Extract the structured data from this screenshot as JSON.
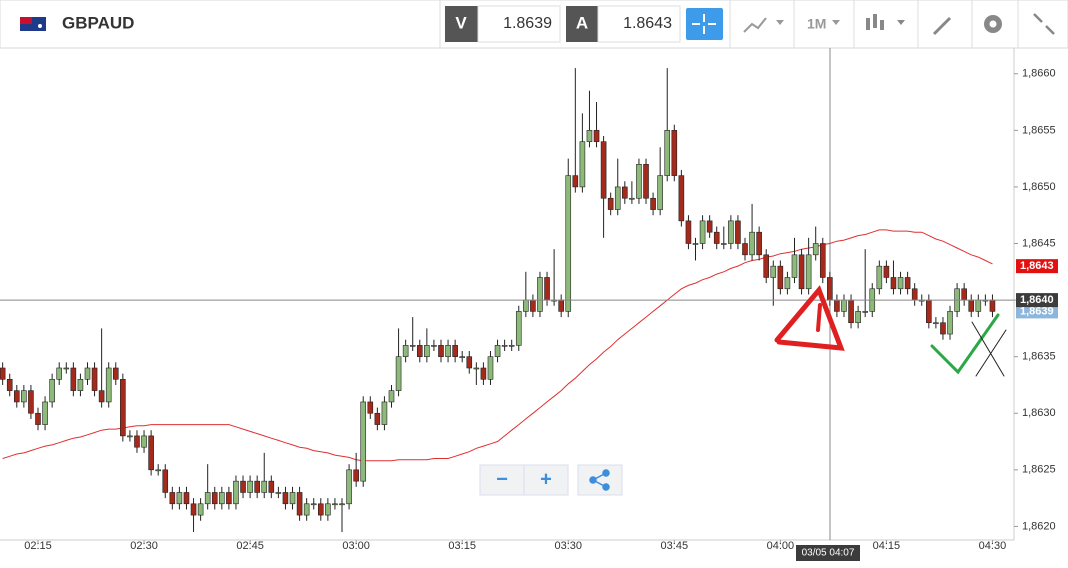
{
  "header": {
    "symbol": "GBPAUD",
    "bid_label": "V",
    "bid": "1.8639",
    "ask_label": "A",
    "ask": "1.8643",
    "timeframe": "1M"
  },
  "controls": {
    "zoom_out": "−",
    "zoom_in": "+"
  },
  "chart_data": {
    "type": "candlestick",
    "categories": [
      null,
      null,
      null,
      null,
      null,
      "02:15",
      null,
      null,
      null,
      null,
      null,
      null,
      null,
      null,
      null,
      null,
      null,
      null,
      null,
      null,
      "02:30",
      null,
      null,
      null,
      null,
      null,
      null,
      null,
      null,
      null,
      null,
      null,
      null,
      null,
      null,
      "02:45",
      null,
      null,
      null,
      null,
      null,
      null,
      null,
      null,
      null,
      null,
      null,
      null,
      null,
      null,
      "03:00",
      null,
      null,
      null,
      null,
      null,
      null,
      null,
      null,
      null,
      null,
      null,
      null,
      null,
      null,
      "03:15",
      null,
      null,
      null,
      null,
      null,
      null,
      null,
      null,
      null,
      null,
      null,
      null,
      null,
      null,
      "03:30",
      null,
      null,
      null,
      null,
      null,
      null,
      null,
      null,
      null,
      null,
      null,
      null,
      null,
      null,
      "03:45",
      null,
      null,
      null,
      null,
      null,
      null,
      null,
      null,
      null,
      null,
      null,
      null,
      null,
      null,
      "04:00",
      null,
      null,
      null,
      null,
      null,
      null,
      null,
      null,
      null,
      null,
      null,
      null,
      null,
      null,
      "04:15",
      null,
      null,
      null,
      null,
      null,
      null,
      null,
      null,
      null,
      null,
      null,
      null,
      null,
      null,
      "04:30"
    ],
    "open": [
      1.8634,
      1.8633,
      1.8632,
      1.8631,
      1.8632,
      1.863,
      1.8629,
      1.8631,
      1.8633,
      1.8634,
      1.8634,
      1.8632,
      1.8633,
      1.8634,
      1.8632,
      1.8631,
      1.8634,
      1.8633,
      1.8628,
      1.8628,
      1.8627,
      1.8628,
      1.8625,
      1.8625,
      1.8623,
      1.8622,
      1.8623,
      1.8622,
      1.8621,
      1.8622,
      1.8623,
      1.8622,
      1.8623,
      1.8622,
      1.8624,
      1.8623,
      1.8624,
      1.8623,
      1.8624,
      1.8623,
      1.8623,
      1.8622,
      1.8623,
      1.8621,
      1.8622,
      1.8622,
      1.8621,
      1.8622,
      1.8622,
      1.8622,
      1.8625,
      1.8624,
      1.8631,
      1.863,
      1.8629,
      1.8631,
      1.8632,
      1.8635,
      1.8636,
      1.8636,
      1.8635,
      1.8636,
      1.8636,
      1.8635,
      1.8636,
      1.8635,
      1.8635,
      1.8634,
      1.8634,
      1.8633,
      1.8635,
      1.8636,
      1.8636,
      1.8636,
      1.8639,
      1.864,
      1.8639,
      1.8642,
      1.864,
      1.864,
      1.8639,
      1.8651,
      1.865,
      1.8654,
      1.8655,
      1.8654,
      1.8649,
      1.8648,
      1.865,
      1.8649,
      1.8649,
      1.8652,
      1.8649,
      1.8648,
      1.8651,
      1.8655,
      1.8651,
      1.8647,
      1.8645,
      1.8645,
      1.8647,
      1.8646,
      1.8645,
      1.8645,
      1.8647,
      1.8645,
      1.8644,
      1.8646,
      1.8644,
      1.8642,
      1.8643,
      1.8641,
      1.8642,
      1.8644,
      1.8641,
      1.8644,
      1.8645,
      1.8642,
      1.864,
      1.8639,
      1.864,
      1.8638,
      1.8639,
      1.8639,
      1.8641,
      1.8643,
      1.8642,
      1.8641,
      1.8642,
      1.8641,
      1.864,
      1.864,
      1.8638,
      1.8638,
      1.8637,
      1.8639,
      1.8641,
      1.864,
      1.8639,
      1.864,
      1.864
    ],
    "high": [
      1.86345,
      1.86335,
      1.86325,
      1.86325,
      1.86325,
      1.86305,
      1.86315,
      1.86335,
      1.86345,
      1.86345,
      1.86345,
      1.86335,
      1.86345,
      1.86345,
      1.86375,
      1.86345,
      1.86345,
      1.86335,
      1.86285,
      1.86285,
      1.86285,
      1.86285,
      1.86255,
      1.86255,
      1.86235,
      1.86235,
      1.86235,
      1.86225,
      1.86225,
      1.86255,
      1.86235,
      1.86235,
      1.86235,
      1.86245,
      1.86245,
      1.86245,
      1.86245,
      1.86265,
      1.86245,
      1.86235,
      1.86235,
      1.86235,
      1.86235,
      1.86225,
      1.86225,
      1.86225,
      1.86225,
      1.86225,
      1.86225,
      1.86255,
      1.86265,
      1.86315,
      1.86315,
      1.86305,
      1.86315,
      1.86325,
      1.86375,
      1.86365,
      1.86385,
      1.86365,
      1.86375,
      1.86365,
      1.86365,
      1.86365,
      1.86365,
      1.86355,
      1.86355,
      1.86345,
      1.86345,
      1.86355,
      1.86365,
      1.86365,
      1.86365,
      1.86395,
      1.86425,
      1.86405,
      1.86425,
      1.86425,
      1.86445,
      1.86405,
      1.86525,
      1.86605,
      1.86565,
      1.86585,
      1.86575,
      1.86545,
      1.86495,
      1.86525,
      1.86505,
      1.86505,
      1.86525,
      1.86525,
      1.86495,
      1.86535,
      1.86605,
      1.86555,
      1.86515,
      1.86475,
      1.86455,
      1.86475,
      1.86475,
      1.86465,
      1.86465,
      1.86475,
      1.86475,
      1.86455,
      1.86485,
      1.86465,
      1.86445,
      1.86435,
      1.86435,
      1.86425,
      1.86455,
      1.86445,
      1.86455,
      1.86465,
      1.86455,
      1.86425,
      1.86405,
      1.86405,
      1.86405,
      1.86395,
      1.86445,
      1.86415,
      1.86435,
      1.86435,
      1.86435,
      1.86425,
      1.86425,
      1.86415,
      1.86405,
      1.86405,
      1.86385,
      1.86385,
      1.86395,
      1.86415,
      1.86415,
      1.86405,
      1.86405,
      1.86405,
      1.86405
    ],
    "low": [
      1.86325,
      1.86315,
      1.86305,
      1.86305,
      1.86295,
      1.86285,
      1.86285,
      1.86305,
      1.86325,
      1.86335,
      1.86315,
      1.86315,
      1.86325,
      1.86315,
      1.86305,
      1.86305,
      1.86325,
      1.86275,
      1.86275,
      1.86265,
      1.86265,
      1.86245,
      1.86245,
      1.86225,
      1.86215,
      1.86215,
      1.86215,
      1.86195,
      1.86205,
      1.86215,
      1.86215,
      1.86215,
      1.86215,
      1.86215,
      1.86225,
      1.86225,
      1.86225,
      1.86225,
      1.86225,
      1.86225,
      1.86215,
      1.86215,
      1.86205,
      1.86205,
      1.86215,
      1.86205,
      1.86205,
      1.86215,
      1.86195,
      1.86215,
      1.86235,
      1.86235,
      1.86295,
      1.86285,
      1.86285,
      1.86305,
      1.86315,
      1.86345,
      1.86355,
      1.86345,
      1.86345,
      1.86355,
      1.86345,
      1.86345,
      1.86345,
      1.86345,
      1.86335,
      1.86325,
      1.86325,
      1.86325,
      1.86345,
      1.86355,
      1.86355,
      1.86355,
      1.86385,
      1.86385,
      1.86385,
      1.86395,
      1.86395,
      1.86385,
      1.86385,
      1.86495,
      1.86495,
      1.86535,
      1.86535,
      1.86455,
      1.86475,
      1.86475,
      1.86485,
      1.86485,
      1.86485,
      1.86485,
      1.86475,
      1.86475,
      1.86505,
      1.86505,
      1.86465,
      1.86445,
      1.86435,
      1.86445,
      1.86455,
      1.86445,
      1.86445,
      1.86445,
      1.86445,
      1.86435,
      1.86435,
      1.86435,
      1.86415,
      1.86395,
      1.86405,
      1.86405,
      1.86415,
      1.86405,
      1.86405,
      1.86435,
      1.86415,
      1.86395,
      1.86385,
      1.86385,
      1.86375,
      1.86375,
      1.86385,
      1.86385,
      1.86405,
      1.86415,
      1.86405,
      1.86405,
      1.86405,
      1.86395,
      1.86395,
      1.86375,
      1.86375,
      1.86365,
      1.86365,
      1.86385,
      1.86395,
      1.86385,
      1.86385,
      1.86395,
      1.86385
    ],
    "close": [
      1.8633,
      1.8632,
      1.8631,
      1.8632,
      1.863,
      1.8629,
      1.8631,
      1.8633,
      1.8634,
      1.8634,
      1.8632,
      1.8633,
      1.8634,
      1.8632,
      1.8631,
      1.8634,
      1.8633,
      1.8628,
      1.8628,
      1.8627,
      1.8628,
      1.8625,
      1.8625,
      1.8623,
      1.8622,
      1.8623,
      1.8622,
      1.8621,
      1.8622,
      1.8623,
      1.8622,
      1.8623,
      1.8622,
      1.8624,
      1.8623,
      1.8624,
      1.8623,
      1.8624,
      1.8623,
      1.8623,
      1.8622,
      1.8623,
      1.8621,
      1.8622,
      1.8622,
      1.8621,
      1.8622,
      1.8622,
      1.8622,
      1.8625,
      1.8624,
      1.8631,
      1.863,
      1.8629,
      1.8631,
      1.8632,
      1.8635,
      1.8636,
      1.8636,
      1.8635,
      1.8636,
      1.8636,
      1.8635,
      1.8636,
      1.8635,
      1.8635,
      1.8634,
      1.8634,
      1.8633,
      1.8635,
      1.8636,
      1.8636,
      1.8636,
      1.8639,
      1.864,
      1.8639,
      1.8642,
      1.864,
      1.864,
      1.8639,
      1.8651,
      1.865,
      1.8654,
      1.8655,
      1.8654,
      1.8649,
      1.8648,
      1.865,
      1.8649,
      1.8649,
      1.8652,
      1.8649,
      1.8648,
      1.8651,
      1.8655,
      1.8651,
      1.8647,
      1.8645,
      1.8645,
      1.8647,
      1.8646,
      1.8645,
      1.8645,
      1.8647,
      1.8645,
      1.8644,
      1.8646,
      1.8644,
      1.8642,
      1.8643,
      1.8641,
      1.8642,
      1.8644,
      1.8641,
      1.8644,
      1.8645,
      1.8642,
      1.864,
      1.8639,
      1.864,
      1.8638,
      1.8639,
      1.8639,
      1.8641,
      1.8643,
      1.8642,
      1.8641,
      1.8642,
      1.8641,
      1.864,
      1.864,
      1.8638,
      1.8638,
      1.8637,
      1.8639,
      1.8641,
      1.864,
      1.8639,
      1.864,
      1.864,
      1.8639
    ],
    "up_color": "#8db97a",
    "down_color": "#a42a1c",
    "moving_average": {
      "color": "#e03030",
      "values": [
        1.8626,
        1.86262,
        1.86264,
        1.86265,
        1.86267,
        1.86269,
        1.86271,
        1.86272,
        1.86274,
        1.86276,
        1.86278,
        1.86279,
        1.86281,
        1.86283,
        1.86285,
        1.86286,
        1.86286,
        1.86287,
        1.86288,
        1.86289,
        1.86289,
        1.8629,
        1.8629,
        1.8629,
        1.8629,
        1.8629,
        1.8629,
        1.8629,
        1.8629,
        1.8629,
        1.8629,
        1.8629,
        1.8629,
        1.86288,
        1.86286,
        1.86284,
        1.86282,
        1.8628,
        1.86278,
        1.86276,
        1.86274,
        1.86272,
        1.8627,
        1.86269,
        1.86267,
        1.86266,
        1.86265,
        1.86263,
        1.86262,
        1.86261,
        1.86259,
        1.86258,
        1.86258,
        1.86258,
        1.86258,
        1.86258,
        1.86259,
        1.86259,
        1.86259,
        1.86259,
        1.86259,
        1.8626,
        1.8626,
        1.8626,
        1.86262,
        1.86264,
        1.86266,
        1.86269,
        1.86271,
        1.86273,
        1.86275,
        1.8628,
        1.86285,
        1.8629,
        1.86295,
        1.863,
        1.86305,
        1.8631,
        1.86315,
        1.8632,
        1.86326,
        1.86331,
        1.86337,
        1.86343,
        1.86348,
        1.86354,
        1.86359,
        1.86365,
        1.8637,
        1.86375,
        1.8638,
        1.86385,
        1.8639,
        1.86395,
        1.864,
        1.86405,
        1.8641,
        1.86413,
        1.86415,
        1.86418,
        1.8642,
        1.86423,
        1.86425,
        1.86428,
        1.8643,
        1.86433,
        1.86435,
        1.86436,
        1.86438,
        1.86439,
        1.86441,
        1.86442,
        1.86443,
        1.86445,
        1.86446,
        1.86447,
        1.86449,
        1.8645,
        1.86452,
        1.86453,
        1.86455,
        1.86457,
        1.86458,
        1.8646,
        1.86462,
        1.86462,
        1.86461,
        1.86461,
        1.86461,
        1.8646,
        1.8646,
        1.86457,
        1.86454,
        1.86452,
        1.86449,
        1.86446,
        1.86443,
        1.8644,
        1.86438,
        1.86435,
        1.86432
      ]
    },
    "ylim": [
      1.86188,
      1.86621
    ],
    "yticks": [
      {
        "value": 1.862,
        "label": "1,8620"
      },
      {
        "value": 1.8625,
        "label": "1,8625"
      },
      {
        "value": 1.863,
        "label": "1,8630"
      },
      {
        "value": 1.8635,
        "label": "1,8635"
      },
      {
        "value": 1.864,
        "label": "1,8640"
      },
      {
        "value": 1.8645,
        "label": "1,8645"
      },
      {
        "value": 1.865,
        "label": "1,8650"
      },
      {
        "value": 1.8655,
        "label": "1,8655"
      },
      {
        "value": 1.866,
        "label": "1,8660"
      }
    ],
    "price_tags": [
      {
        "value": 1.8643,
        "label": "1,8643",
        "color": "#e31010"
      },
      {
        "value": 1.8639,
        "label": "1,8639",
        "color": "#8db6dc"
      },
      {
        "value": 1.864,
        "label": "1,8640",
        "color": "#3c3c3c"
      }
    ],
    "crosshair_label": "03/05 04:07"
  }
}
